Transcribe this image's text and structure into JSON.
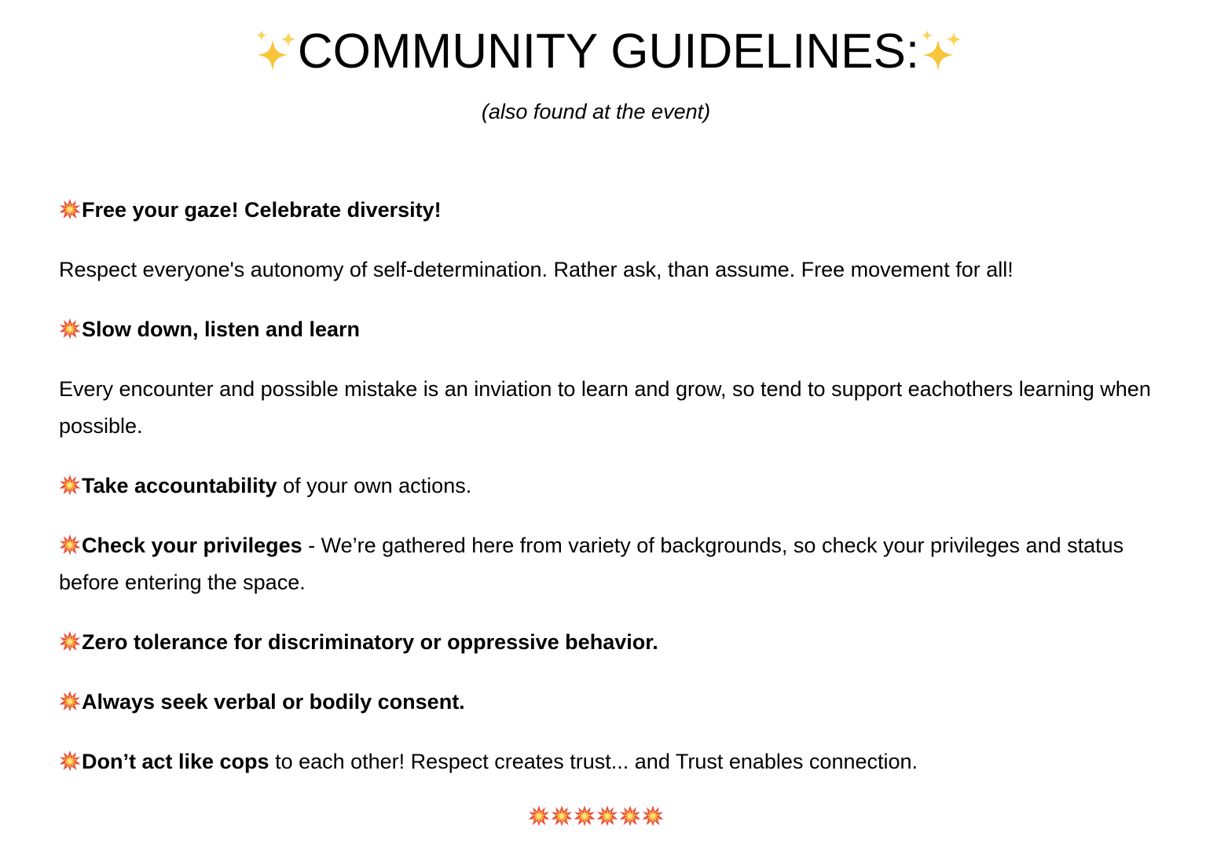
{
  "header": {
    "title": "COMMUNITY GUIDELINES:",
    "title_icon": "sparkles-icon",
    "subtitle": "(also found at the event)"
  },
  "guidelines": [
    {
      "icon": "collision-icon",
      "bold": "Free your gaze! Celebrate diversity!",
      "rest": ""
    },
    {
      "icon": "",
      "bold": "",
      "rest": "Respect everyone's autonomy of self-determination. Rather ask, than assume. Free movement for all!"
    },
    {
      "icon": "collision-icon",
      "bold": "Slow down, listen and learn",
      "rest": ""
    },
    {
      "icon": "",
      "bold": "",
      "rest": "Every encounter and possible mistake is an inviation to learn and grow, so tend to support eachothers learning when possible."
    },
    {
      "icon": "collision-icon",
      "bold": "Take accountability",
      "rest": " of your own actions."
    },
    {
      "icon": "collision-icon",
      "bold": "Check your privileges",
      "rest": " - We’re gathered here from variety of backgrounds, so check your privileges and status before entering the space."
    },
    {
      "icon": "collision-icon",
      "bold": "Zero tolerance for discriminatory or oppressive behavior.",
      "rest": ""
    },
    {
      "icon": "collision-icon",
      "bold": "Always seek verbal or bodily consent.",
      "rest": ""
    },
    {
      "icon": "collision-icon",
      "bold": "Don’t act like cops",
      "rest": " to each other! Respect creates trust... and Trust enables connection."
    }
  ],
  "footer": {
    "icon": "collision-icon",
    "count": 6
  },
  "colors": {
    "text": "#000000",
    "background": "#ffffff",
    "sparkle": "#f7c53a",
    "collision_outer": "#e8483a",
    "collision_inner": "#f7b23a"
  }
}
